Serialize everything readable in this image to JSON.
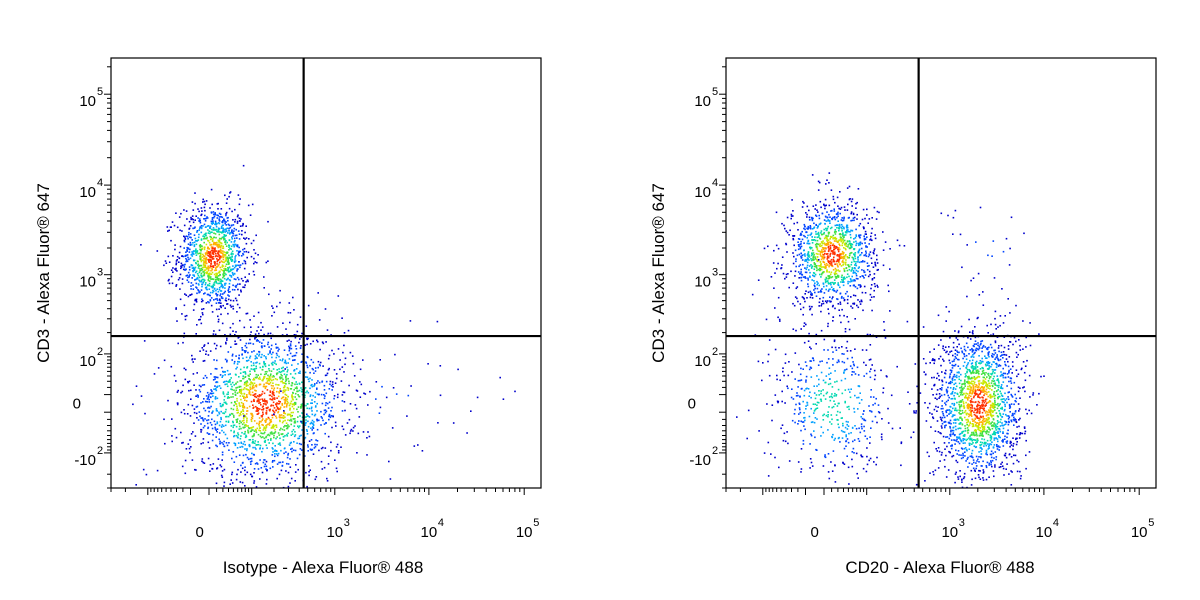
{
  "chart_data": [
    {
      "type": "scatter",
      "title": "",
      "xlabel": "Isotype - Alexa Fluor® 488",
      "ylabel": "CD3 - Alexa Fluor® 647",
      "x_scale": "biexponential",
      "y_scale": "biexponential",
      "xlim": [
        -300,
        150000
      ],
      "ylim": [
        -300,
        250000
      ],
      "x_ticks": [
        {
          "value": 0,
          "base": "0",
          "exp": ""
        },
        {
          "value": 1000,
          "base": "10",
          "exp": "3"
        },
        {
          "value": 10000,
          "base": "10",
          "exp": "4"
        },
        {
          "value": 100000,
          "base": "10",
          "exp": "5"
        }
      ],
      "y_ticks": [
        {
          "value": -100,
          "base": "-10",
          "exp": "2"
        },
        {
          "value": 0,
          "base": "0",
          "exp": ""
        },
        {
          "value": 100,
          "base": "10",
          "exp": "2"
        },
        {
          "value": 1000,
          "base": "10",
          "exp": "3"
        },
        {
          "value": 10000,
          "base": "10",
          "exp": "4"
        },
        {
          "value": 100000,
          "base": "10",
          "exp": "5"
        }
      ],
      "gates": {
        "x": 450,
        "y": 180
      },
      "populations": [
        {
          "name": "CD3+ Isotype-",
          "center": [
            15,
            1600
          ],
          "count": 1200,
          "spread": [
            0.45,
            0.7
          ]
        },
        {
          "name": "CD3- Isotype-",
          "center": [
            150,
            0
          ],
          "count": 1900,
          "spread": [
            1.0,
            1.0
          ]
        },
        {
          "name": "scattered events",
          "center": [
            1500,
            5
          ],
          "count": 60,
          "spread": [
            2.4,
            0.8
          ]
        }
      ],
      "grid": false,
      "legend": "none"
    },
    {
      "type": "scatter",
      "title": "",
      "xlabel": "CD20 - Alexa Fluor® 488",
      "ylabel": "CD3 - Alexa Fluor® 647",
      "x_scale": "biexponential",
      "y_scale": "biexponential",
      "xlim": [
        -300,
        150000
      ],
      "ylim": [
        -300,
        250000
      ],
      "x_ticks": [
        {
          "value": 0,
          "base": "0",
          "exp": ""
        },
        {
          "value": 1000,
          "base": "10",
          "exp": "3"
        },
        {
          "value": 10000,
          "base": "10",
          "exp": "4"
        },
        {
          "value": 100000,
          "base": "10",
          "exp": "5"
        }
      ],
      "y_ticks": [
        {
          "value": -100,
          "base": "-10",
          "exp": "2"
        },
        {
          "value": 0,
          "base": "0",
          "exp": ""
        },
        {
          "value": 100,
          "base": "10",
          "exp": "2"
        },
        {
          "value": 1000,
          "base": "10",
          "exp": "3"
        },
        {
          "value": 10000,
          "base": "10",
          "exp": "4"
        },
        {
          "value": 100000,
          "base": "10",
          "exp": "5"
        }
      ],
      "gates": {
        "x": 450,
        "y": 180
      },
      "populations": [
        {
          "name": "CD3+ CD20-",
          "center": [
            20,
            1700
          ],
          "count": 1200,
          "spread": [
            0.55,
            0.7
          ]
        },
        {
          "name": "CD3- CD20+",
          "center": [
            2000,
            0
          ],
          "count": 1700,
          "spread": [
            0.55,
            1.0
          ]
        },
        {
          "name": "CD3- CD20-",
          "center": [
            20,
            0
          ],
          "count": 500,
          "spread": [
            0.8,
            1.0
          ]
        },
        {
          "name": "CD3+ CD20+ scattered",
          "center": [
            2500,
            1800
          ],
          "count": 25,
          "spread": [
            0.6,
            0.8
          ]
        }
      ],
      "grid": false,
      "legend": "none"
    }
  ]
}
